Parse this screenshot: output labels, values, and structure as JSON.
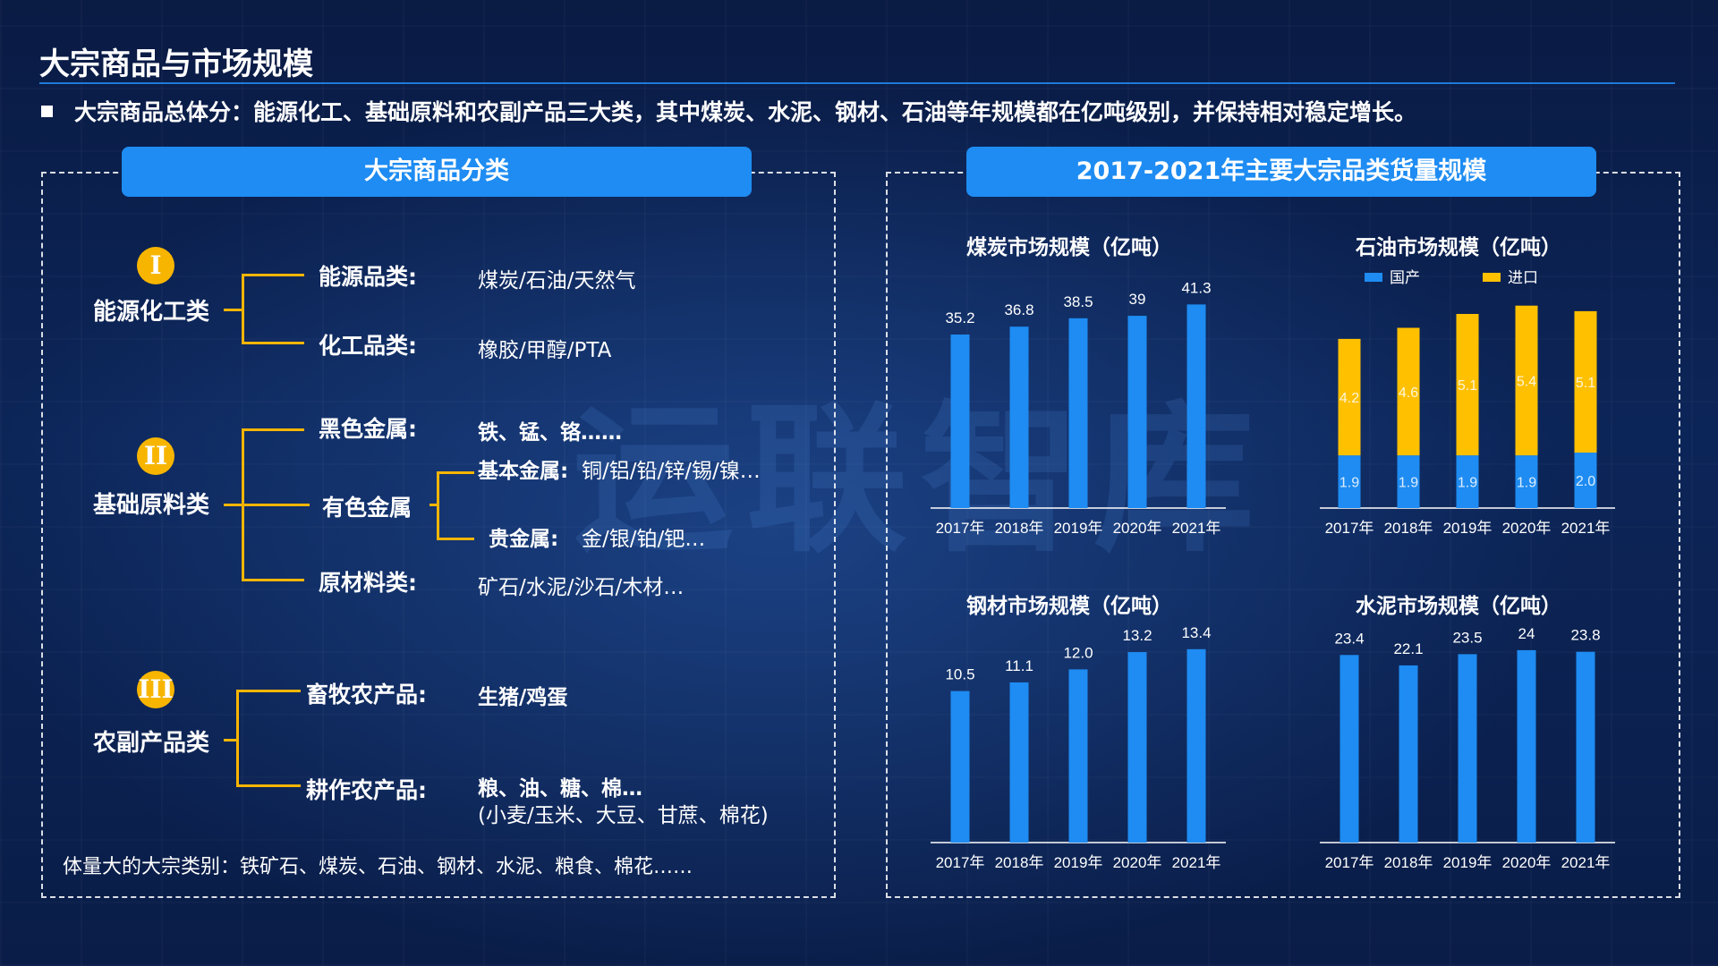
{
  "header": {
    "title": "大宗商品与市场规模",
    "bullet": "大宗商品总体分：能源化工、基础原料和农副产品三大类，其中煤炭、水泥、钢材、石油等年规模都在亿吨级别，并保持相对稳定增长。"
  },
  "left_panel": {
    "heading": "大宗商品分类",
    "energy": {
      "numeral": "I",
      "name": "能源化工类",
      "items": [
        {
          "label": "能源品类:",
          "value": "煤炭/石油/天然气"
        },
        {
          "label": "化工品类:",
          "value": "橡胶/甲醇/PTA"
        }
      ]
    },
    "basic": {
      "numeral": "II",
      "name": "基础原料类",
      "black": {
        "label": "黑色金属:",
        "value": "铁、锰、铬……"
      },
      "nonferrous": {
        "label": "有色金属",
        "base": {
          "label": "基本金属:",
          "value": "铜/铝/铅/锌/锡/镍…"
        },
        "precious": {
          "label": "贵金属:",
          "value": "金/银/铂/钯…"
        }
      },
      "raw": {
        "label": "原材料类:",
        "value": "矿石/水泥/沙石/木材…"
      }
    },
    "agri": {
      "numeral": "III",
      "name": "农副产品类",
      "livestock": {
        "label": "畜牧农产品:",
        "value": "生猪/鸡蛋"
      },
      "crop": {
        "label": "耕作农产品:",
        "value": "粮、油、糖、棉…",
        "value2": "(小麦/玉米、大豆、甘蔗、棉花)"
      }
    },
    "footnote": "体量大的大宗类别：铁矿石、煤炭、石油、钢材、水泥、粮食、棉花……"
  },
  "right_panel": {
    "heading": "2017-2021年主要大宗品类货量规模"
  },
  "watermark": "运联智库",
  "colors": {
    "blue_bar": "#1e8cf2",
    "yellow_bar": "#ffc000",
    "accent_line": "#f7b500"
  },
  "chart_data": [
    {
      "type": "bar",
      "title": "煤炭市场规模（亿吨）",
      "categories": [
        "2017年",
        "2018年",
        "2019年",
        "2020年",
        "2021年"
      ],
      "values": [
        35.2,
        36.8,
        38.5,
        39,
        41.3
      ],
      "labels": [
        "35.2",
        "36.8",
        "38.5",
        "39",
        "41.3"
      ],
      "ylim": [
        0,
        45
      ]
    },
    {
      "type": "bar",
      "stacked": true,
      "title": "石油市场规模（亿吨）",
      "categories": [
        "2017年",
        "2018年",
        "2019年",
        "2020年",
        "2021年"
      ],
      "series": [
        {
          "name": "国产",
          "values": [
            1.9,
            1.9,
            1.9,
            1.9,
            2.0
          ],
          "labels": [
            "1.9",
            "1.9",
            "1.9",
            "1.9",
            "2.0"
          ],
          "color": "#1e8cf2"
        },
        {
          "name": "进口",
          "values": [
            4.2,
            4.6,
            5.1,
            5.4,
            5.1
          ],
          "labels": [
            "4.2",
            "4.6",
            "5.1",
            "5.4",
            "5.1"
          ],
          "color": "#ffc000"
        }
      ],
      "ylim": [
        0,
        8
      ],
      "legend": "top"
    },
    {
      "type": "bar",
      "title": "钢材市场规模（亿吨）",
      "categories": [
        "2017年",
        "2018年",
        "2019年",
        "2020年",
        "2021年"
      ],
      "values": [
        10.5,
        11.1,
        12.0,
        13.2,
        13.4
      ],
      "labels": [
        "10.5",
        "11.1",
        "12.0",
        "13.2",
        "13.4"
      ],
      "ylim": [
        0,
        15
      ]
    },
    {
      "type": "bar",
      "title": "水泥市场规模（亿吨）",
      "categories": [
        "2017年",
        "2018年",
        "2019年",
        "2020年",
        "2021年"
      ],
      "values": [
        23.4,
        22.1,
        23.5,
        24,
        23.8
      ],
      "labels": [
        "23.4",
        "22.1",
        "23.5",
        "24",
        "23.8"
      ],
      "ylim": [
        0,
        27
      ]
    }
  ]
}
